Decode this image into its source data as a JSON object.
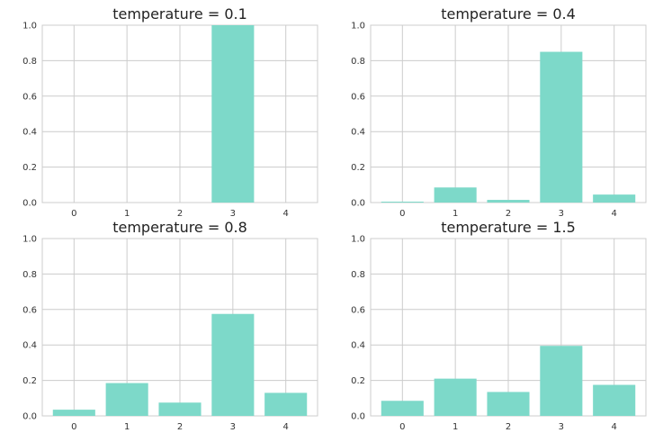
{
  "chart_data": [
    {
      "type": "bar",
      "title": "temperature = 0.1",
      "categories": [
        "0",
        "1",
        "2",
        "3",
        "4"
      ],
      "values": [
        0.0,
        0.0,
        0.0,
        1.0,
        0.0
      ],
      "xlabel": "",
      "ylabel": "",
      "ylim": [
        0,
        1.0
      ],
      "yticks": [
        "0.0",
        "0.2",
        "0.4",
        "0.6",
        "0.8",
        "1.0"
      ],
      "grid": true
    },
    {
      "type": "bar",
      "title": "temperature = 0.4",
      "categories": [
        "0",
        "1",
        "2",
        "3",
        "4"
      ],
      "values": [
        0.005,
        0.085,
        0.015,
        0.85,
        0.045
      ],
      "xlabel": "",
      "ylabel": "",
      "ylim": [
        0,
        1.0
      ],
      "yticks": [
        "0.0",
        "0.2",
        "0.4",
        "0.6",
        "0.8",
        "1.0"
      ],
      "grid": true
    },
    {
      "type": "bar",
      "title": "temperature = 0.8",
      "categories": [
        "0",
        "1",
        "2",
        "3",
        "4"
      ],
      "values": [
        0.035,
        0.185,
        0.075,
        0.575,
        0.13
      ],
      "xlabel": "",
      "ylabel": "",
      "ylim": [
        0,
        1.0
      ],
      "yticks": [
        "0.0",
        "0.2",
        "0.4",
        "0.6",
        "0.8",
        "1.0"
      ],
      "grid": true
    },
    {
      "type": "bar",
      "title": "temperature = 1.5",
      "categories": [
        "0",
        "1",
        "2",
        "3",
        "4"
      ],
      "values": [
        0.085,
        0.21,
        0.135,
        0.395,
        0.175
      ],
      "xlabel": "",
      "ylabel": "",
      "ylim": [
        0,
        1.0
      ],
      "yticks": [
        "0.0",
        "0.2",
        "0.4",
        "0.6",
        "0.8",
        "1.0"
      ],
      "grid": true
    }
  ],
  "colors": {
    "bar": "#7dd9c9",
    "grid": "#cccccc",
    "background": "#ffffff",
    "text": "#333333"
  }
}
